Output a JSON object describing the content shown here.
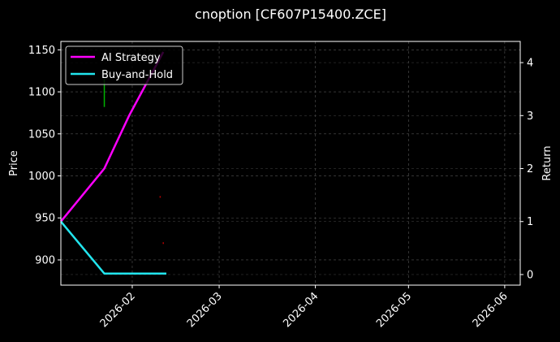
{
  "chart_data": {
    "type": "line",
    "title": "cnoption [CF607P15400.ZCE]",
    "ylabel": "Price",
    "y2label": "Return",
    "xlim": [
      "2026-01-09",
      "2026-06-06"
    ],
    "ylim": [
      870,
      1160
    ],
    "y2lim": [
      -0.2,
      4.4
    ],
    "x_ticks": [
      "2026-02",
      "2026-03",
      "2026-04",
      "2026-05",
      "2026-06"
    ],
    "y_ticks": [
      900,
      950,
      1000,
      1050,
      1100,
      1150
    ],
    "y2_ticks": [
      0,
      1,
      2,
      3,
      4
    ],
    "grid": true,
    "legend_position": "top-left",
    "background": "#000000",
    "series": [
      {
        "name": "AI Strategy",
        "axis": "right",
        "color": "#ff00ff",
        "points": [
          {
            "x": "2026-01-09",
            "y": 1.0
          },
          {
            "x": "2026-01-23",
            "y": 2.0
          },
          {
            "x": "2026-01-31",
            "y": 3.0
          },
          {
            "x": "2026-02-11",
            "y": 4.2
          }
        ]
      },
      {
        "name": "Buy-and-Hold",
        "axis": "right",
        "color": "#22e5ee",
        "points": [
          {
            "x": "2026-01-09",
            "y": 1.0
          },
          {
            "x": "2026-01-23",
            "y": 0.02
          },
          {
            "x": "2026-02-12",
            "y": 0.02
          }
        ]
      }
    ],
    "candles": [
      {
        "x": "2026-01-23",
        "high": 1115,
        "low": 1082,
        "color": "#00b400"
      },
      {
        "x": "2026-02-10",
        "high": 976,
        "low": 974,
        "color": "#b40000"
      },
      {
        "x": "2026-02-11",
        "high": 921,
        "low": 919,
        "color": "#b40000"
      }
    ]
  }
}
